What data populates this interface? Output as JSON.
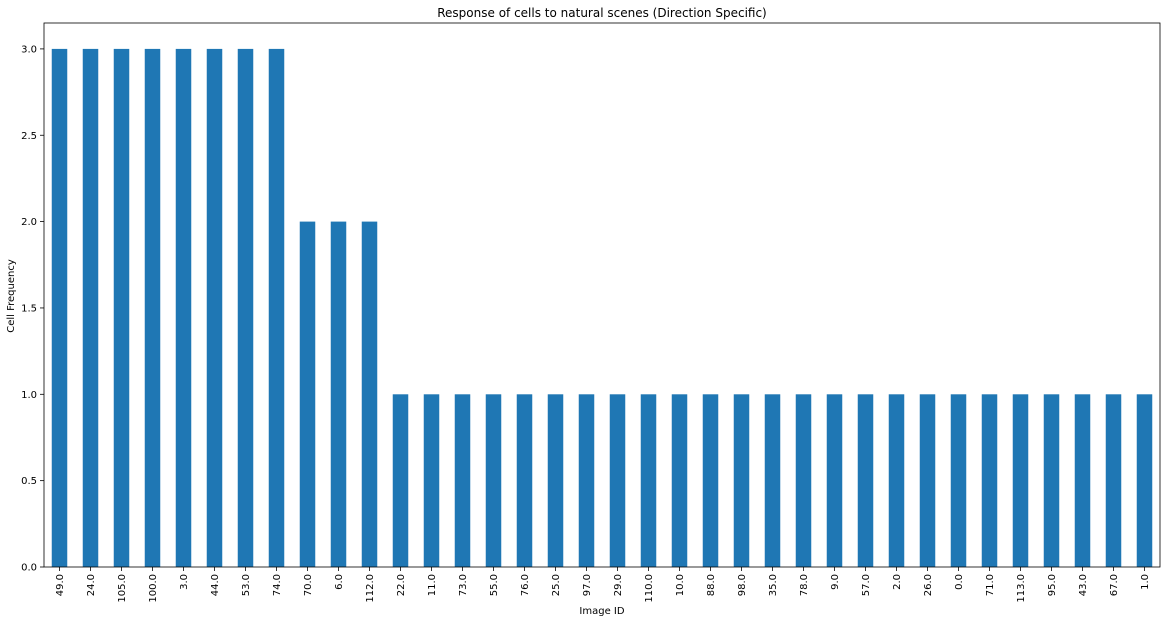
{
  "chart_data": {
    "type": "bar",
    "title": "Response of cells to natural scenes (Direction Specific)",
    "xlabel": "Image ID",
    "ylabel": "Cell Frequency",
    "categories": [
      "49.0",
      "24.0",
      "105.0",
      "100.0",
      "3.0",
      "44.0",
      "53.0",
      "74.0",
      "70.0",
      "6.0",
      "112.0",
      "22.0",
      "11.0",
      "73.0",
      "55.0",
      "76.0",
      "25.0",
      "97.0",
      "29.0",
      "110.0",
      "10.0",
      "88.0",
      "98.0",
      "35.0",
      "78.0",
      "9.0",
      "57.0",
      "2.0",
      "26.0",
      "0.0",
      "71.0",
      "113.0",
      "95.0",
      "43.0",
      "67.0",
      "1.0"
    ],
    "values": [
      3,
      3,
      3,
      3,
      3,
      3,
      3,
      3,
      2,
      2,
      2,
      1,
      1,
      1,
      1,
      1,
      1,
      1,
      1,
      1,
      1,
      1,
      1,
      1,
      1,
      1,
      1,
      1,
      1,
      1,
      1,
      1,
      1,
      1,
      1,
      1
    ],
    "ylim": [
      0,
      3.15
    ],
    "yticks": [
      "0.0",
      "0.5",
      "1.0",
      "1.5",
      "2.0",
      "2.5",
      "3.0"
    ],
    "bar_color": "#1f77b4",
    "grid": false,
    "legend": "none"
  }
}
